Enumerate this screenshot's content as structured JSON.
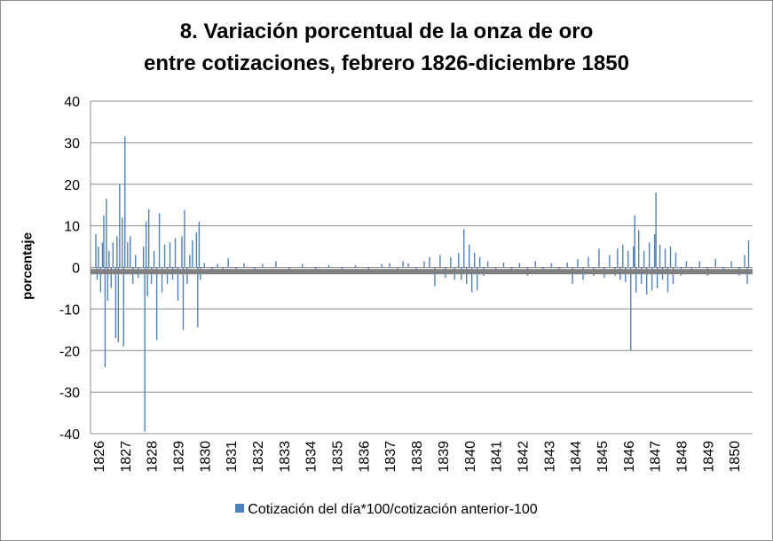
{
  "chart_data": {
    "type": "bar",
    "title_lines": [
      "8. Variación porcentual de la onza de oro",
      "entre cotizaciones, febrero 1826-diciembre 1850"
    ],
    "ylabel": "porcentaje",
    "xlabel": "",
    "ylim": [
      -40,
      40
    ],
    "yticks": [
      "40",
      "30",
      "20",
      "10",
      "0",
      "-10",
      "-20",
      "-30",
      "-40"
    ],
    "xlim": [
      1826.0,
      1851.0
    ],
    "xticks": [
      "1826",
      "1827",
      "1828",
      "1829",
      "1830",
      "1831",
      "1832",
      "1833",
      "1834",
      "1835",
      "1836",
      "1837",
      "1838",
      "1839",
      "1840",
      "1841",
      "1842",
      "1843",
      "1844",
      "1845",
      "1846",
      "1847",
      "1848",
      "1849",
      "1850"
    ],
    "grid": "horizontal",
    "legend_position": "bottom",
    "series": [
      {
        "name": "Cotización del día*100/cotización anterior-100",
        "color": "#4f81bd",
        "points": [
          [
            1826.2,
            8.0
          ],
          [
            1826.25,
            -3.0
          ],
          [
            1826.3,
            5.0
          ],
          [
            1826.38,
            -6.0
          ],
          [
            1826.45,
            6.0
          ],
          [
            1826.5,
            12.5
          ],
          [
            1826.55,
            -24.0
          ],
          [
            1826.6,
            16.5
          ],
          [
            1826.65,
            -8.0
          ],
          [
            1826.7,
            4.0
          ],
          [
            1826.78,
            -5.0
          ],
          [
            1826.85,
            6.0
          ],
          [
            1826.95,
            -17.0
          ],
          [
            1827.0,
            7.5
          ],
          [
            1827.05,
            -18.0
          ],
          [
            1827.1,
            20.0
          ],
          [
            1827.2,
            12.0
          ],
          [
            1827.25,
            -19.0
          ],
          [
            1827.3,
            31.5
          ],
          [
            1827.4,
            6.0
          ],
          [
            1827.5,
            7.5
          ],
          [
            1827.6,
            -4.0
          ],
          [
            1827.7,
            3.0
          ],
          [
            1827.8,
            -2.5
          ],
          [
            1828.0,
            5.0
          ],
          [
            1828.05,
            -39.5
          ],
          [
            1828.1,
            11.0
          ],
          [
            1828.15,
            -7.0
          ],
          [
            1828.2,
            14.0
          ],
          [
            1828.3,
            -4.0
          ],
          [
            1828.4,
            4.0
          ],
          [
            1828.5,
            -17.5
          ],
          [
            1828.6,
            13.0
          ],
          [
            1828.7,
            -6.0
          ],
          [
            1828.8,
            5.5
          ],
          [
            1828.9,
            -4.0
          ],
          [
            1829.0,
            6.0
          ],
          [
            1829.1,
            -3.0
          ],
          [
            1829.2,
            7.0
          ],
          [
            1829.3,
            -8.0
          ],
          [
            1829.45,
            7.5
          ],
          [
            1829.5,
            -15.0
          ],
          [
            1829.55,
            13.8
          ],
          [
            1829.65,
            -4.0
          ],
          [
            1829.75,
            3.0
          ],
          [
            1829.85,
            6.5
          ],
          [
            1830.0,
            8.5
          ],
          [
            1830.05,
            -14.5
          ],
          [
            1830.1,
            11.0
          ],
          [
            1830.15,
            -3.0
          ],
          [
            1830.3,
            1.0
          ],
          [
            1830.6,
            -1.0
          ],
          [
            1830.8,
            0.8
          ],
          [
            1831.0,
            -1.0
          ],
          [
            1831.2,
            2.2
          ],
          [
            1831.5,
            -0.8
          ],
          [
            1831.8,
            1.0
          ],
          [
            1832.2,
            -0.8
          ],
          [
            1832.5,
            0.8
          ],
          [
            1833.0,
            1.5
          ],
          [
            1833.5,
            -0.6
          ],
          [
            1834.0,
            0.8
          ],
          [
            1834.5,
            -0.6
          ],
          [
            1835.0,
            0.6
          ],
          [
            1835.5,
            -0.5
          ],
          [
            1836.0,
            0.5
          ],
          [
            1836.5,
            -0.5
          ],
          [
            1837.0,
            0.8
          ],
          [
            1837.3,
            1.0
          ],
          [
            1837.6,
            -1.0
          ],
          [
            1837.8,
            1.5
          ],
          [
            1838.0,
            1.0
          ],
          [
            1838.3,
            -1.5
          ],
          [
            1838.6,
            1.5
          ],
          [
            1838.8,
            2.5
          ],
          [
            1839.0,
            -4.5
          ],
          [
            1839.2,
            3.0
          ],
          [
            1839.4,
            -2.5
          ],
          [
            1839.6,
            2.5
          ],
          [
            1839.75,
            -3.0
          ],
          [
            1839.9,
            3.5
          ],
          [
            1840.0,
            -3.0
          ],
          [
            1840.1,
            9.2
          ],
          [
            1840.2,
            -4.0
          ],
          [
            1840.3,
            5.5
          ],
          [
            1840.4,
            -6.0
          ],
          [
            1840.5,
            3.5
          ],
          [
            1840.6,
            -5.5
          ],
          [
            1840.7,
            2.5
          ],
          [
            1840.85,
            -2.0
          ],
          [
            1841.0,
            1.5
          ],
          [
            1841.3,
            -1.5
          ],
          [
            1841.6,
            1.2
          ],
          [
            1841.9,
            -1.0
          ],
          [
            1842.2,
            1.0
          ],
          [
            1842.5,
            -2.0
          ],
          [
            1842.8,
            1.5
          ],
          [
            1843.1,
            -1.0
          ],
          [
            1843.4,
            1.0
          ],
          [
            1843.7,
            -1.0
          ],
          [
            1844.0,
            1.2
          ],
          [
            1844.2,
            -4.0
          ],
          [
            1844.4,
            2.0
          ],
          [
            1844.6,
            -3.0
          ],
          [
            1844.8,
            2.5
          ],
          [
            1845.0,
            -2.0
          ],
          [
            1845.2,
            4.5
          ],
          [
            1845.4,
            -2.5
          ],
          [
            1845.6,
            3.0
          ],
          [
            1845.8,
            -2.0
          ],
          [
            1845.9,
            4.5
          ],
          [
            1846.0,
            -3.0
          ],
          [
            1846.1,
            5.5
          ],
          [
            1846.2,
            -3.5
          ],
          [
            1846.3,
            4.0
          ],
          [
            1846.4,
            -20.0
          ],
          [
            1846.5,
            5.0
          ],
          [
            1846.55,
            12.5
          ],
          [
            1846.6,
            -6.0
          ],
          [
            1846.7,
            9.0
          ],
          [
            1846.8,
            -4.0
          ],
          [
            1846.9,
            4.0
          ],
          [
            1847.0,
            -6.5
          ],
          [
            1847.1,
            6.0
          ],
          [
            1847.2,
            -5.5
          ],
          [
            1847.3,
            8.0
          ],
          [
            1847.35,
            18.0
          ],
          [
            1847.4,
            -5.0
          ],
          [
            1847.5,
            5.5
          ],
          [
            1847.6,
            -3.0
          ],
          [
            1847.7,
            4.5
          ],
          [
            1847.8,
            -6.0
          ],
          [
            1847.9,
            5.0
          ],
          [
            1848.0,
            -4.0
          ],
          [
            1848.1,
            3.5
          ],
          [
            1848.3,
            -2.0
          ],
          [
            1848.5,
            1.5
          ],
          [
            1848.7,
            -1.5
          ],
          [
            1849.0,
            1.5
          ],
          [
            1849.3,
            -2.0
          ],
          [
            1849.6,
            2.0
          ],
          [
            1849.9,
            -1.5
          ],
          [
            1850.2,
            1.5
          ],
          [
            1850.5,
            -2.0
          ],
          [
            1850.7,
            3.0
          ],
          [
            1850.8,
            -4.0
          ],
          [
            1850.85,
            6.5
          ]
        ]
      },
      {
        "name": "",
        "color": "#808080",
        "constant": -1.0,
        "description_in_chart": "grey baseline band at about -1"
      }
    ]
  }
}
